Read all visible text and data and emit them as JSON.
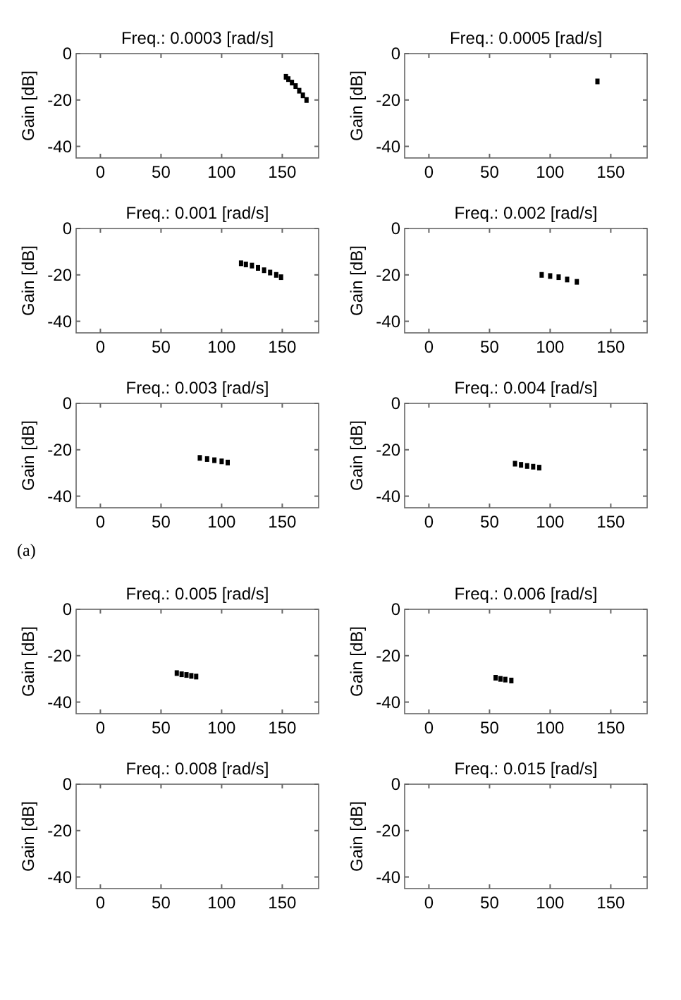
{
  "chart_data": [
    {
      "type": "scatter",
      "title": "Freq.: 0.0003 [rad/s]",
      "ylabel": "Gain [dB]",
      "xlim": [
        -20,
        180
      ],
      "ylim": [
        -45,
        0
      ],
      "xticks": [
        0,
        50,
        100,
        150
      ],
      "yticks": [
        0,
        -20,
        -40
      ],
      "marker": "square",
      "color": "#000000",
      "x": [
        153,
        155,
        158,
        161,
        164,
        167,
        170
      ],
      "values": [
        -10,
        -11,
        -12.5,
        -14,
        -16,
        -18,
        -20
      ]
    },
    {
      "type": "scatter",
      "title": "Freq.: 0.0005 [rad/s]",
      "ylabel": "Gain [dB]",
      "xlim": [
        -20,
        180
      ],
      "ylim": [
        -45,
        0
      ],
      "xticks": [
        0,
        50,
        100,
        150
      ],
      "yticks": [
        0,
        -20,
        -40
      ],
      "marker": "square",
      "color": "#000000",
      "x": [
        139
      ],
      "values": [
        -12
      ]
    },
    {
      "type": "scatter",
      "title": "Freq.: 0.001 [rad/s]",
      "ylabel": "Gain [dB]",
      "xlim": [
        -20,
        180
      ],
      "ylim": [
        -45,
        0
      ],
      "xticks": [
        0,
        50,
        100,
        150
      ],
      "yticks": [
        0,
        -20,
        -40
      ],
      "marker": "square",
      "color": "#000000",
      "x": [
        116,
        120,
        125,
        130,
        135,
        140,
        145,
        149
      ],
      "values": [
        -15,
        -15.5,
        -16,
        -17,
        -18,
        -19,
        -20,
        -21
      ]
    },
    {
      "type": "scatter",
      "title": "Freq.: 0.002 [rad/s]",
      "ylabel": "Gain [dB]",
      "xlim": [
        -20,
        180
      ],
      "ylim": [
        -45,
        0
      ],
      "xticks": [
        0,
        50,
        100,
        150
      ],
      "yticks": [
        0,
        -20,
        -40
      ],
      "marker": "square",
      "color": "#000000",
      "x": [
        93,
        100,
        107,
        114,
        122
      ],
      "values": [
        -20,
        -20.5,
        -21,
        -22,
        -23
      ]
    },
    {
      "type": "scatter",
      "title": "Freq.: 0.003 [rad/s]",
      "ylabel": "Gain [dB]",
      "xlim": [
        -20,
        180
      ],
      "ylim": [
        -45,
        0
      ],
      "xticks": [
        0,
        50,
        100,
        150
      ],
      "yticks": [
        0,
        -20,
        -40
      ],
      "marker": "square",
      "color": "#000000",
      "x": [
        82,
        88,
        94,
        100,
        105
      ],
      "values": [
        -23.5,
        -24,
        -24.5,
        -25,
        -25.5
      ],
      "annotations": [
        "(a)"
      ]
    },
    {
      "type": "scatter",
      "title": "Freq.: 0.004 [rad/s]",
      "ylabel": "Gain [dB]",
      "xlim": [
        -20,
        180
      ],
      "ylim": [
        -45,
        0
      ],
      "xticks": [
        0,
        50,
        100,
        150
      ],
      "yticks": [
        0,
        -20,
        -40
      ],
      "marker": "square",
      "color": "#000000",
      "x": [
        71,
        76,
        81,
        86,
        91
      ],
      "values": [
        -26,
        -26.5,
        -27,
        -27.3,
        -27.7
      ]
    },
    {
      "type": "scatter",
      "title": "Freq.: 0.005 [rad/s]",
      "ylabel": "Gain [dB]",
      "xlim": [
        -20,
        180
      ],
      "ylim": [
        -45,
        0
      ],
      "xticks": [
        0,
        50,
        100,
        150
      ],
      "yticks": [
        0,
        -20,
        -40
      ],
      "marker": "square",
      "color": "#000000",
      "x": [
        63,
        67,
        71,
        75,
        79
      ],
      "values": [
        -27.5,
        -28,
        -28.3,
        -28.7,
        -29
      ]
    },
    {
      "type": "scatter",
      "title": "Freq.: 0.006 [rad/s]",
      "ylabel": "Gain [dB]",
      "xlim": [
        -20,
        180
      ],
      "ylim": [
        -45,
        0
      ],
      "xticks": [
        0,
        50,
        100,
        150
      ],
      "yticks": [
        0,
        -20,
        -40
      ],
      "marker": "square",
      "color": "#000000",
      "x": [
        55,
        59,
        63,
        68
      ],
      "values": [
        -29.5,
        -30,
        -30.3,
        -30.7
      ]
    },
    {
      "type": "scatter",
      "title": "Freq.: 0.008 [rad/s]",
      "ylabel": "Gain [dB]",
      "xlim": [
        -20,
        180
      ],
      "ylim": [
        -45,
        0
      ],
      "xticks": [
        0,
        50,
        100,
        150
      ],
      "yticks": [
        0,
        -20,
        -40
      ]
    },
    {
      "type": "scatter",
      "title": "Freq.: 0.015 [rad/s]",
      "ylabel": "Gain [dB]",
      "xlim": [
        -20,
        180
      ],
      "ylim": [
        -45,
        0
      ],
      "xticks": [
        0,
        50,
        100,
        150
      ],
      "yticks": [
        0,
        -20,
        -40
      ]
    }
  ]
}
